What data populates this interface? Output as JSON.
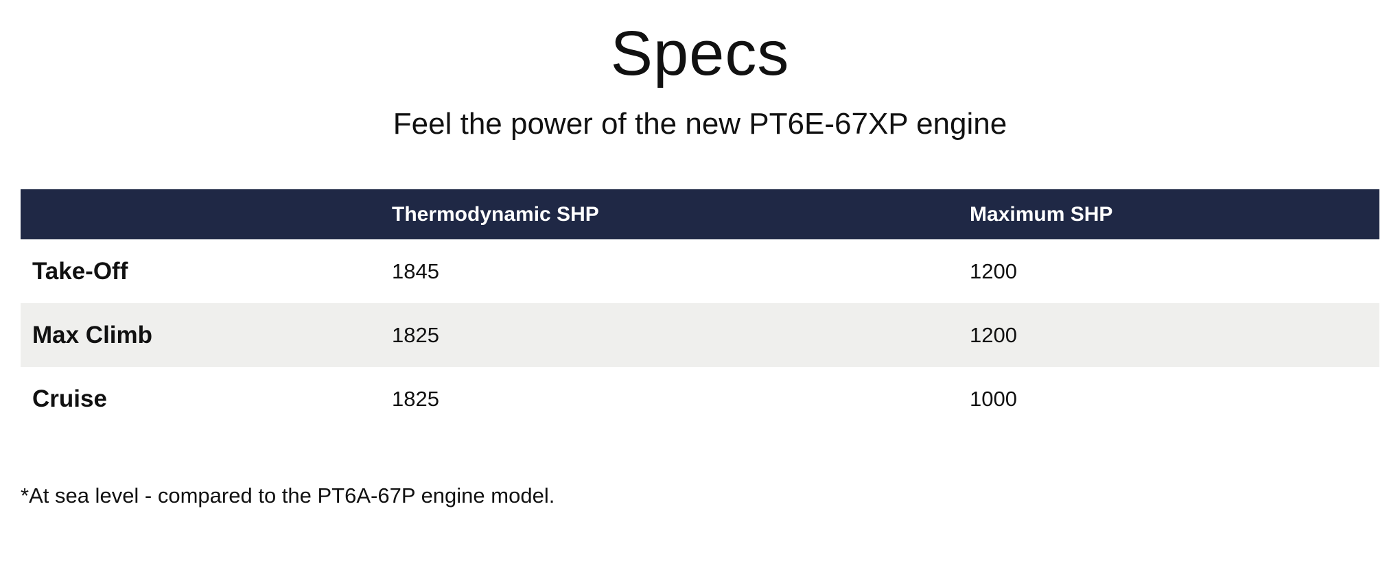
{
  "header": {
    "title": "Specs",
    "subtitle": "Feel the power of the new PT6E-67XP engine"
  },
  "table": {
    "columns": [
      "",
      "Thermodynamic SHP",
      "Maximum SHP"
    ],
    "rows": [
      {
        "label": "Take-Off",
        "thermodynamic_shp": "1845",
        "maximum_shp": "1200"
      },
      {
        "label": "Max Climb",
        "thermodynamic_shp": "1825",
        "maximum_shp": "1200"
      },
      {
        "label": "Cruise",
        "thermodynamic_shp": "1825",
        "maximum_shp": "1000"
      }
    ]
  },
  "footnote": "*At sea level - compared to the PT6A-67P engine model.",
  "colors": {
    "header_background": "#1f2845",
    "header_text": "#ffffff",
    "shaded_row": "#efefed"
  }
}
